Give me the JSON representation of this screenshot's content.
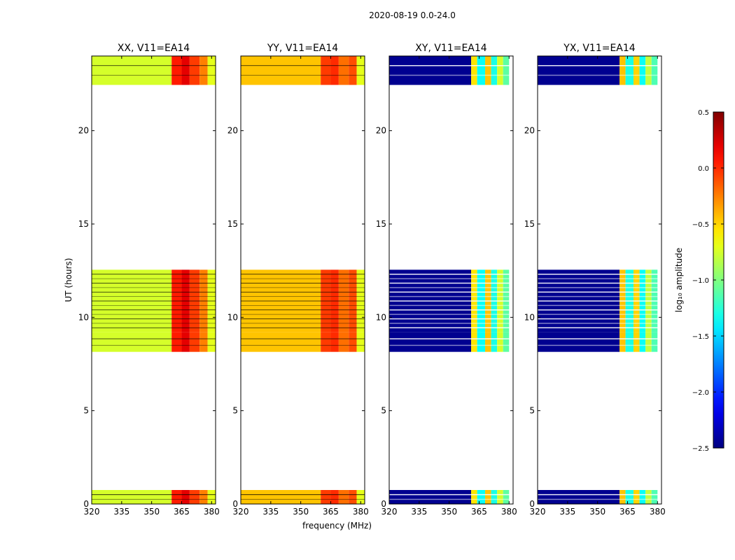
{
  "chart_data": {
    "type": "heatmap",
    "suptitle": "2020-08-19 0.0-24.0",
    "xlabel": "frequency (MHz)",
    "ylabel": "UT (hours)",
    "xlim": [
      320,
      382
    ],
    "ylim": [
      0,
      24
    ],
    "x_ticks": [
      320,
      335,
      350,
      365,
      380
    ],
    "y_ticks": [
      0,
      5,
      10,
      15,
      20
    ],
    "colorbar": {
      "label": "log₁₀ amplitude",
      "range": [
        -2.5,
        0.5
      ],
      "ticks": [
        -2.5,
        -2.0,
        -1.5,
        -1.0,
        -0.5,
        0.0,
        0.5
      ],
      "tick_labels": [
        "−2.5",
        "−2.0",
        "−1.5",
        "−1.0",
        "−0.5",
        "0.0",
        "0.5"
      ],
      "colormap": "jet"
    },
    "data_time_ranges_hours": [
      [
        0.0,
        0.75
      ],
      [
        8.15,
        9.2
      ],
      [
        9.2,
        12.55
      ],
      [
        22.45,
        24.0
      ]
    ],
    "panels": [
      {
        "title": "XX, V11=EA14",
        "polarization": "XX",
        "bands": [
          {
            "f_start": 320,
            "f_end": 360,
            "log_amp": -0.75
          },
          {
            "f_start": 360,
            "f_end": 365,
            "log_amp": 0.05
          },
          {
            "f_start": 365,
            "f_end": 369,
            "log_amp": 0.2
          },
          {
            "f_start": 369,
            "f_end": 374,
            "log_amp": -0.05
          },
          {
            "f_start": 374,
            "f_end": 378,
            "log_amp": -0.25
          },
          {
            "f_start": 378,
            "f_end": 382,
            "log_amp": -0.7
          }
        ]
      },
      {
        "title": "YY, V11=EA14",
        "polarization": "YY",
        "bands": [
          {
            "f_start": 320,
            "f_end": 360,
            "log_amp": -0.45
          },
          {
            "f_start": 360,
            "f_end": 365,
            "log_amp": -0.05
          },
          {
            "f_start": 365,
            "f_end": 369,
            "log_amp": 0.0
          },
          {
            "f_start": 369,
            "f_end": 374,
            "log_amp": -0.2
          },
          {
            "f_start": 374,
            "f_end": 378,
            "log_amp": -0.1
          },
          {
            "f_start": 378,
            "f_end": 382,
            "log_amp": -0.7
          }
        ]
      },
      {
        "title": "XY, V11=EA14",
        "polarization": "XY",
        "bands": [
          {
            "f_start": 320,
            "f_end": 361,
            "log_amp": -2.45
          },
          {
            "f_start": 361,
            "f_end": 364,
            "log_amp": -0.55
          },
          {
            "f_start": 364,
            "f_end": 368,
            "log_amp": -1.35
          },
          {
            "f_start": 368,
            "f_end": 371,
            "log_amp": -0.45
          },
          {
            "f_start": 371,
            "f_end": 374,
            "log_amp": -1.3
          },
          {
            "f_start": 374,
            "f_end": 377,
            "log_amp": -0.75
          },
          {
            "f_start": 377,
            "f_end": 380,
            "log_amp": -1.1
          }
        ]
      },
      {
        "title": "YX, V11=EA14",
        "polarization": "YX",
        "bands": [
          {
            "f_start": 320,
            "f_end": 361,
            "log_amp": -2.45
          },
          {
            "f_start": 361,
            "f_end": 364,
            "log_amp": -0.45
          },
          {
            "f_start": 364,
            "f_end": 368,
            "log_amp": -1.3
          },
          {
            "f_start": 368,
            "f_end": 371,
            "log_amp": -0.5
          },
          {
            "f_start": 371,
            "f_end": 374,
            "log_amp": -1.35
          },
          {
            "f_start": 374,
            "f_end": 377,
            "log_amp": -0.8
          },
          {
            "f_start": 377,
            "f_end": 380,
            "log_amp": -1.15
          }
        ]
      }
    ]
  }
}
